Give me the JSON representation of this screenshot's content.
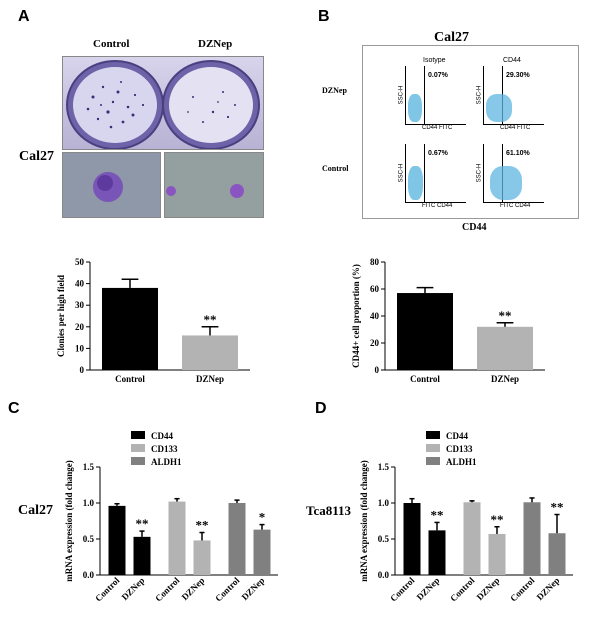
{
  "panels": {
    "a": "A",
    "b": "B",
    "c": "C",
    "d": "D"
  },
  "panel_a": {
    "cell_line": "Cal27",
    "col_control": "Control",
    "col_dznep": "DZNep"
  },
  "panel_b": {
    "title": "Cal27",
    "col_isotype": "Isotype",
    "col_cd44": "CD44",
    "row_dznep": "DZNep",
    "row_control": "Control",
    "q_dznep_isotype": "0.07%",
    "q_dznep_cd44": "29.30%",
    "q_control_isotype": "0.67%",
    "q_control_cd44": "61.10%",
    "axis_y": "SSC-H",
    "axis_x_iso": "CD44 FITC",
    "axis_x_cd44": "CD44 FITC",
    "axis_x_iso2": "FITC CD44",
    "axis_x_cd44_2": "FITC CD44",
    "x_title": "CD44"
  },
  "panel_c": {
    "cell_line": "Cal27"
  },
  "panel_d": {
    "cell_line": "Tca8113"
  },
  "colors": {
    "black": "#000000",
    "light_gray": "#b3b3b3",
    "mid_gray": "#808080"
  },
  "chart_data": [
    {
      "id": "clones",
      "type": "bar",
      "categories": [
        "Control",
        "DZNep"
      ],
      "values": [
        38,
        16
      ],
      "errors": [
        4,
        4
      ],
      "colors": [
        "#000000",
        "#b3b3b3"
      ],
      "ylabel": "Clonies per high field",
      "ylim": [
        0,
        50
      ],
      "yticks": [
        "0",
        "10",
        "20",
        "30",
        "40",
        "50"
      ],
      "annotations": [
        "",
        "**"
      ]
    },
    {
      "id": "cd44prop",
      "type": "bar",
      "categories": [
        "Control",
        "DZNep"
      ],
      "values": [
        57,
        32
      ],
      "errors": [
        4,
        3
      ],
      "colors": [
        "#000000",
        "#b3b3b3"
      ],
      "ylabel": "CD44+ cell proportion (%)",
      "ylim": [
        0,
        80
      ],
      "yticks": [
        "0",
        "20",
        "40",
        "60",
        "80"
      ],
      "annotations": [
        "",
        "**"
      ]
    },
    {
      "id": "cal27_mrna",
      "type": "bar",
      "categories": [
        "Control",
        "DZNep",
        "Control",
        "DZNep",
        "Control",
        "DZNep"
      ],
      "values": [
        0.96,
        0.53,
        1.02,
        0.48,
        1.0,
        0.63
      ],
      "errors": [
        0.03,
        0.08,
        0.04,
        0.11,
        0.04,
        0.07
      ],
      "colors": [
        "#000000",
        "#000000",
        "#b3b3b3",
        "#b3b3b3",
        "#808080",
        "#808080"
      ],
      "ylabel": "mRNA expression (fold change)",
      "ylim": [
        0,
        1.5
      ],
      "yticks": [
        "0.0",
        "0.5",
        "1.0",
        "1.5"
      ],
      "annotations": [
        "",
        "**",
        "",
        "**",
        "",
        "*"
      ],
      "legend": [
        "CD44",
        "CD133",
        "ALDH1"
      ]
    },
    {
      "id": "tca8113_mrna",
      "type": "bar",
      "categories": [
        "Control",
        "DZNep",
        "Control",
        "DZNep",
        "Control",
        "DZNep"
      ],
      "values": [
        1.0,
        0.62,
        1.01,
        0.57,
        1.01,
        0.58
      ],
      "errors": [
        0.06,
        0.11,
        0.02,
        0.1,
        0.06,
        0.26
      ],
      "colors": [
        "#000000",
        "#000000",
        "#b3b3b3",
        "#b3b3b3",
        "#808080",
        "#808080"
      ],
      "ylabel": "mRNA expression (fold change)",
      "ylim": [
        0,
        1.5
      ],
      "yticks": [
        "0.0",
        "0.5",
        "1.0",
        "1.5"
      ],
      "annotations": [
        "",
        "**",
        "",
        "**",
        "",
        "**"
      ],
      "legend": [
        "CD44",
        "CD133",
        "ALDH1"
      ]
    }
  ]
}
